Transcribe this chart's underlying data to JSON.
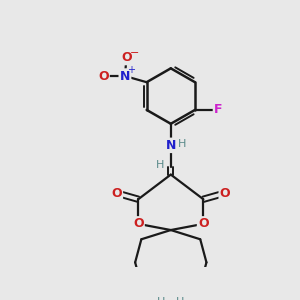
{
  "background_color": "#e8e8e8",
  "figsize": [
    3.0,
    3.0
  ],
  "dpi": 100,
  "colors": {
    "bond": "#1a1a1a",
    "N": "#2020cc",
    "O": "#cc2020",
    "F": "#cc22cc",
    "H": "#5a8a8a"
  }
}
